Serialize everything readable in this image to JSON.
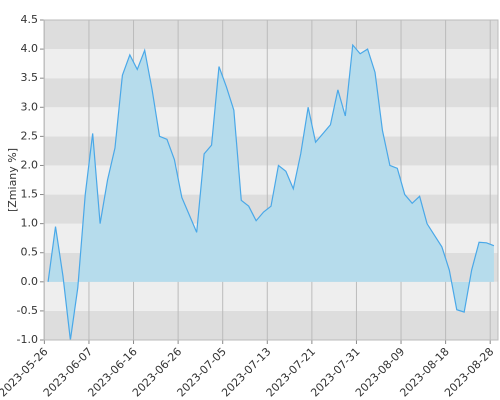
{
  "chart_data": {
    "type": "area",
    "y_label": "[Zmiany %]",
    "values": [
      0.0,
      0.95,
      0.1,
      -1.0,
      -0.1,
      1.5,
      2.55,
      1.0,
      1.75,
      2.3,
      3.55,
      3.9,
      3.65,
      3.98,
      3.3,
      2.5,
      2.45,
      2.1,
      1.45,
      1.15,
      0.85,
      2.2,
      2.35,
      3.7,
      3.35,
      2.95,
      1.4,
      1.3,
      1.05,
      1.2,
      1.3,
      2.0,
      1.9,
      1.6,
      2.2,
      3.0,
      2.4,
      2.55,
      2.7,
      3.3,
      2.85,
      4.07,
      3.92,
      4.0,
      3.6,
      2.6,
      2.0,
      1.95,
      1.5,
      1.35,
      1.47,
      1.0,
      0.8,
      0.6,
      0.2,
      -0.48,
      -0.52,
      0.2,
      0.68,
      0.67,
      0.62
    ],
    "color": "#4aa8e8",
    "fill": "#b6dcec",
    "xlim": [
      -0.55,
      60.55
    ],
    "xticks": [
      {
        "value": -0.5,
        "label": "2023-05-26"
      },
      {
        "value": 5.5,
        "label": "2023-06-07"
      },
      {
        "value": 11.5,
        "label": "2023-06-16"
      },
      {
        "value": 17.5,
        "label": "2023-06-26"
      },
      {
        "value": 23.5,
        "label": "2023-07-05"
      },
      {
        "value": 29.5,
        "label": "2023-07-13"
      },
      {
        "value": 35.5,
        "label": "2023-07-21"
      },
      {
        "value": 41.5,
        "label": "2023-07-31"
      },
      {
        "value": 47.5,
        "label": "2023-08-09"
      },
      {
        "value": 53.5,
        "label": "2023-08-18"
      },
      {
        "value": 59.5,
        "label": "2023-08-28"
      }
    ],
    "ylim": [
      -1.0,
      4.5
    ],
    "yticks": [
      {
        "value": -1,
        "label": "-1.0"
      },
      -0.5,
      {
        "value": 0,
        "label": "0.0"
      },
      0.5,
      {
        "value": 1,
        "label": "1.0"
      },
      1.5,
      {
        "value": 2,
        "label": "2.0"
      },
      2.5,
      {
        "value": 3,
        "label": "3.0"
      },
      3.5,
      {
        "value": 4,
        "label": "4.0"
      },
      4.5
    ],
    "band_colors": [
      "#dddddd",
      "#eeeeee"
    ],
    "grid_color": "#bbbbbb"
  }
}
